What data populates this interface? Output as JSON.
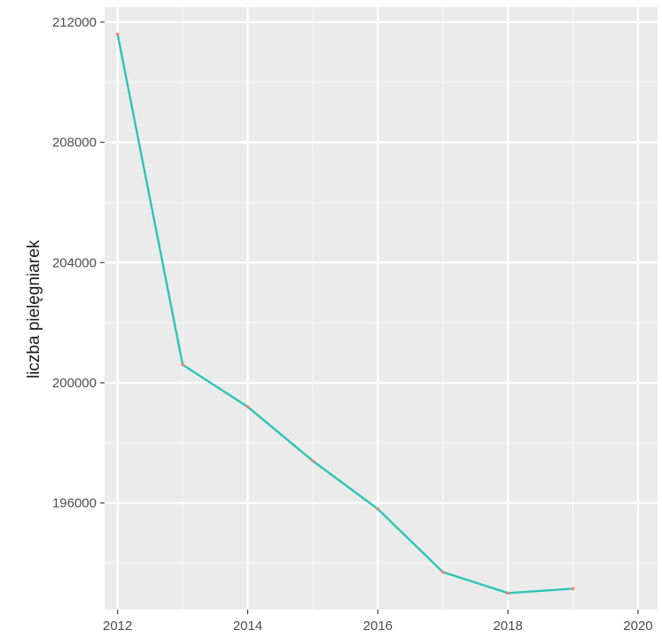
{
  "chart_data": {
    "type": "line",
    "title": "",
    "xlabel": "",
    "ylabel": "liczba pielęgniarek",
    "x": [
      2012,
      2013,
      2014,
      2015,
      2016,
      2017,
      2018,
      2019
    ],
    "series": [
      {
        "values": [
          211600,
          200600,
          199200,
          197400,
          195800,
          193700,
          193000,
          193150
        ]
      }
    ],
    "xlim": [
      2011.8,
      2020.3
    ],
    "ylim": [
      192450,
      212500
    ],
    "x_ticks": [
      "2012",
      "2014",
      "2016",
      "2018",
      "2020"
    ],
    "y_ticks": [
      "196000",
      "200000",
      "204000",
      "208000",
      "212000"
    ],
    "grid": true,
    "legend": "none",
    "colors": {
      "panel_background": "#ebebeb",
      "grid_major": "#ffffff",
      "line": "#2ec4b6",
      "point": "#f0826e"
    }
  }
}
